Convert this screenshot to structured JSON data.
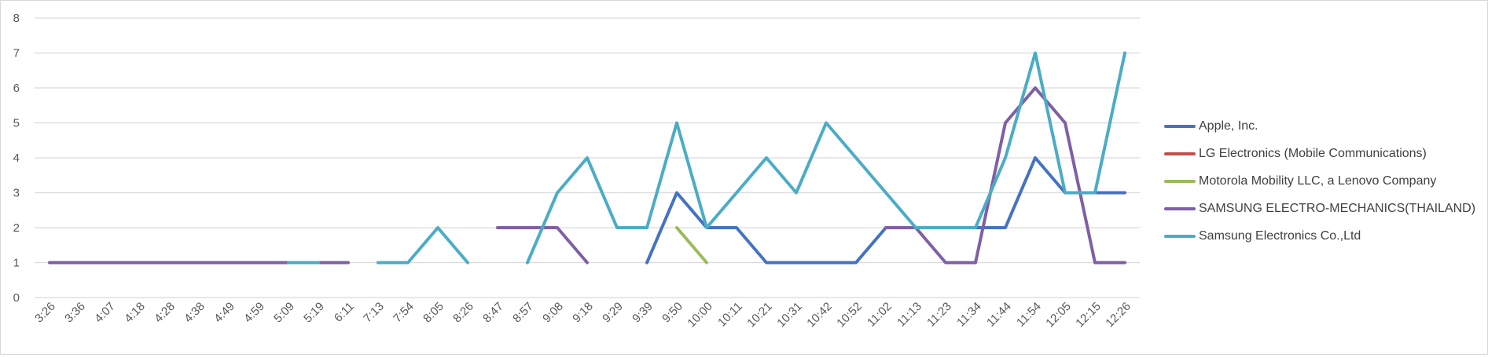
{
  "chart_data": {
    "type": "line",
    "title": "",
    "xlabel": "",
    "ylabel": "",
    "ylim": [
      0,
      8
    ],
    "yticks": [
      0,
      1,
      2,
      3,
      4,
      5,
      6,
      7,
      8
    ],
    "grid": true,
    "legend_position": "right",
    "categories": [
      "3:26",
      "3:36",
      "4:07",
      "4:18",
      "4:28",
      "4:38",
      "4:49",
      "4:59",
      "5:09",
      "5:19",
      "6:11",
      "7:13",
      "7:54",
      "8:05",
      "8:26",
      "8:47",
      "8:57",
      "9:08",
      "9:18",
      "9:29",
      "9:39",
      "9:50",
      "10:00",
      "10:11",
      "10:21",
      "10:31",
      "10:42",
      "10:52",
      "11:02",
      "11:13",
      "11:23",
      "11:34",
      "11:44",
      "11:54",
      "12:05",
      "12:15",
      "12:26"
    ],
    "series": [
      {
        "name": "Apple, Inc.",
        "color": "#4472c4",
        "values": [
          null,
          null,
          null,
          null,
          null,
          null,
          null,
          null,
          null,
          null,
          null,
          null,
          null,
          null,
          null,
          null,
          null,
          null,
          null,
          null,
          1,
          3,
          2,
          2,
          1,
          1,
          1,
          1,
          2,
          2,
          2,
          2,
          2,
          4,
          3,
          3,
          3
        ]
      },
      {
        "name": "LG Electronics (Mobile Communications)",
        "color": "#c0504d",
        "values": [
          null,
          null,
          null,
          null,
          null,
          null,
          null,
          null,
          null,
          null,
          null,
          null,
          null,
          null,
          null,
          null,
          null,
          null,
          null,
          null,
          null,
          null,
          null,
          null,
          null,
          null,
          null,
          null,
          null,
          null,
          null,
          null,
          null,
          null,
          null,
          null,
          null
        ]
      },
      {
        "name": "Motorola Mobility LLC, a Lenovo Company",
        "color": "#9bbb59",
        "values": [
          null,
          null,
          null,
          null,
          null,
          null,
          null,
          null,
          null,
          null,
          null,
          null,
          null,
          null,
          null,
          null,
          null,
          null,
          null,
          null,
          null,
          2,
          1,
          null,
          null,
          null,
          null,
          null,
          null,
          null,
          null,
          null,
          null,
          null,
          null,
          null,
          null
        ]
      },
      {
        "name": "SAMSUNG ELECTRO-MECHANICS(THAILAND)",
        "color": "#7f5fa6",
        "values": [
          1,
          1,
          1,
          1,
          1,
          1,
          1,
          1,
          1,
          1,
          1,
          null,
          null,
          null,
          null,
          2,
          2,
          2,
          1,
          null,
          null,
          null,
          null,
          null,
          null,
          null,
          null,
          null,
          2,
          2,
          1,
          1,
          5,
          6,
          5,
          1,
          1
        ]
      },
      {
        "name": "Samsung Electronics Co.,Ltd",
        "color": "#4bacc6",
        "values": [
          null,
          null,
          null,
          null,
          null,
          null,
          null,
          null,
          1,
          1,
          null,
          1,
          1,
          2,
          1,
          null,
          1,
          3,
          4,
          2,
          2,
          5,
          2,
          3,
          4,
          3,
          5,
          4,
          3,
          2,
          2,
          2,
          4,
          7,
          3,
          3,
          7
        ]
      }
    ]
  }
}
